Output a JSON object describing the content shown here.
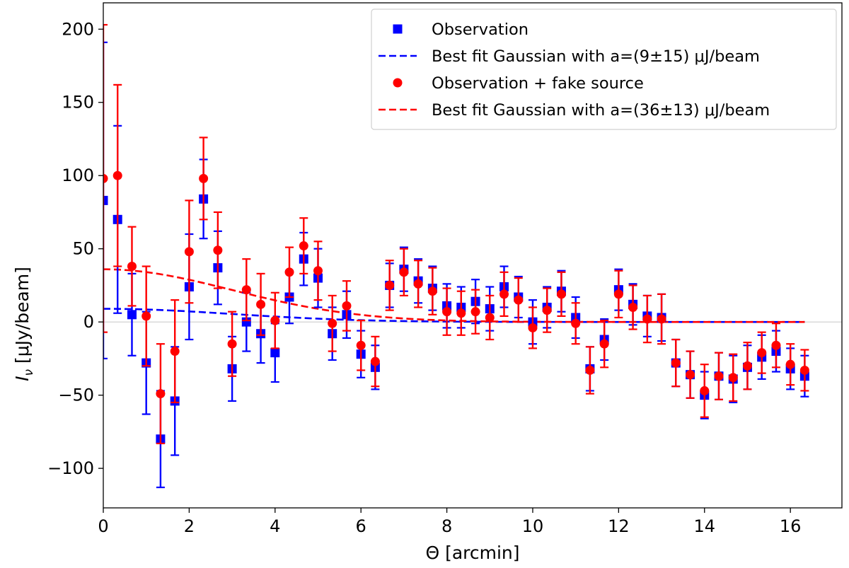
{
  "chart_data": {
    "type": "scatter",
    "title": "",
    "xlabel": "Θ [arcmin]",
    "ylabel": "Iν [μJy/beam]",
    "ylabel_main": "I",
    "ylabel_sub": "ν",
    "ylabel_rest": " [μJy/beam]",
    "xlim": [
      0,
      17.2
    ],
    "ylim": [
      -127,
      218
    ],
    "xticks": [
      0,
      2,
      4,
      6,
      8,
      10,
      12,
      14,
      16
    ],
    "yticks": [
      -100,
      -50,
      0,
      50,
      100,
      150,
      200
    ],
    "ytick_labels": [
      "−100",
      "−50",
      "0",
      "50",
      "100",
      "150",
      "200"
    ],
    "grid": false,
    "legend_placement": "top-right",
    "zero_line": true,
    "x": [
      0,
      0.333,
      0.667,
      1.0,
      1.333,
      1.667,
      2.0,
      2.333,
      2.667,
      3.0,
      3.333,
      3.667,
      4.0,
      4.333,
      4.667,
      5.0,
      5.333,
      5.667,
      6.0,
      6.333,
      6.667,
      7.0,
      7.333,
      7.667,
      8.0,
      8.333,
      8.667,
      9.0,
      9.333,
      9.667,
      10.0,
      10.333,
      10.667,
      11.0,
      11.333,
      11.667,
      12.0,
      12.333,
      12.667,
      13.0,
      13.333,
      13.667,
      14.0,
      14.333,
      14.667,
      15.0,
      15.333,
      15.667,
      16.0,
      16.333
    ],
    "series": [
      {
        "name": "Observation",
        "color": "#0000ff",
        "marker": "square",
        "values": [
          83,
          70,
          5,
          -28,
          -80,
          -54,
          24,
          84,
          37,
          -32,
          0,
          -8,
          -21,
          17,
          43,
          30,
          -8,
          5,
          -22,
          -31,
          25,
          36,
          28,
          23,
          11,
          10,
          14,
          9,
          24,
          17,
          0,
          10,
          21,
          3,
          -32,
          -12,
          22,
          12,
          4,
          3,
          -28,
          -36,
          -50,
          -37,
          -39,
          -31,
          -24,
          -20,
          -32,
          -37
        ],
        "errors": [
          108,
          64,
          28,
          35,
          33,
          37,
          36,
          27,
          25,
          22,
          20,
          20,
          20,
          18,
          18,
          20,
          18,
          16,
          16,
          15,
          15,
          15,
          15,
          15,
          15,
          14,
          15,
          15,
          14,
          14,
          15,
          14,
          14,
          14,
          15,
          14,
          14,
          14,
          14,
          16,
          16,
          16,
          16,
          16,
          16,
          15,
          15,
          14,
          14,
          14
        ]
      },
      {
        "name": "Observation + fake source",
        "color": "#ff0000",
        "marker": "circle",
        "values": [
          98,
          100,
          38,
          4,
          -49,
          -20,
          48,
          98,
          49,
          -15,
          22,
          12,
          1,
          34,
          52,
          35,
          -1,
          11,
          -16,
          -27,
          25,
          34,
          26,
          21,
          7,
          6,
          7,
          3,
          19,
          15,
          -4,
          8,
          19,
          -1,
          -33,
          -15,
          19,
          10,
          2,
          2,
          -28,
          -36,
          -47,
          -37,
          -38,
          -30,
          -21,
          -16,
          -29,
          -33
        ],
        "errors": [
          105,
          62,
          27,
          34,
          34,
          35,
          35,
          28,
          26,
          22,
          21,
          21,
          19,
          17,
          19,
          20,
          19,
          17,
          17,
          17,
          17,
          16,
          16,
          16,
          16,
          15,
          15,
          15,
          15,
          15,
          14,
          15,
          15,
          14,
          16,
          16,
          16,
          15,
          16,
          17,
          16,
          16,
          18,
          16,
          16,
          16,
          14,
          15,
          14,
          14
        ]
      }
    ],
    "fits": [
      {
        "name": "Best fit Gaussian with a=(9±15) μJ/beam",
        "color": "#0000ff",
        "amplitude": 9,
        "sigma": 3.0,
        "x_range": [
          0,
          16.333
        ]
      },
      {
        "name": "Best fit Gaussian with a=(36±13) μJ/beam",
        "color": "#ff0000",
        "amplitude": 36,
        "sigma": 3.0,
        "x_range": [
          0,
          16.333
        ]
      }
    ],
    "legend": [
      {
        "label": "Observation",
        "kind": "square",
        "color": "#0000ff"
      },
      {
        "label": "Best fit Gaussian with a=(9±15) μJ/beam",
        "kind": "dashed",
        "color": "#0000ff"
      },
      {
        "label": "Observation + fake source",
        "kind": "circle",
        "color": "#ff0000"
      },
      {
        "label": "Best fit Gaussian with a=(36±13) μJ/beam",
        "kind": "dashed",
        "color": "#ff0000"
      }
    ]
  }
}
